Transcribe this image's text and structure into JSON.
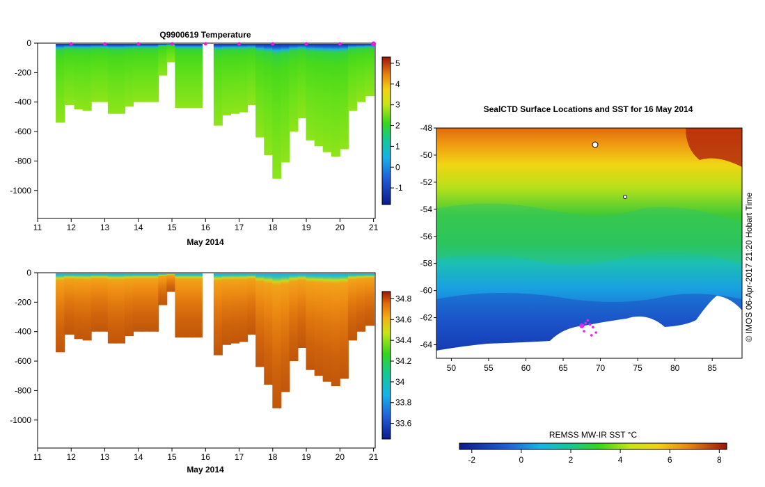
{
  "chart_data": [
    {
      "id": "temp",
      "type": "heatmap",
      "title": "Q9900619  Temperature",
      "xlabel": "May 2014",
      "x_ticks": [
        "11",
        "12",
        "13",
        "14",
        "15",
        "16",
        "17",
        "18",
        "19",
        "20",
        "21"
      ],
      "xlim": [
        11,
        21.05
      ],
      "y_ticks": [
        "0",
        "-200",
        "-400",
        "-600",
        "-800",
        "-1000"
      ],
      "ylim": [
        -1190,
        0
      ],
      "profile_days": [
        11.55,
        11.8,
        12.1,
        12.35,
        12.6,
        12.85,
        13.1,
        13.35,
        13.6,
        13.85,
        14.1,
        14.35,
        14.6,
        14.85,
        15.1,
        15.35,
        15.6,
        16.25,
        16.5,
        16.75,
        17.0,
        17.25,
        17.5,
        17.75,
        18.0,
        18.25,
        18.5,
        18.75,
        19.0,
        19.25,
        19.5,
        19.75,
        20.0,
        20.25,
        20.5,
        20.75
      ],
      "profile_max_depth": [
        -540,
        -420,
        -450,
        -460,
        -400,
        -400,
        -480,
        -480,
        -430,
        -400,
        -400,
        -400,
        -220,
        -130,
        -440,
        -440,
        -440,
        -560,
        -490,
        -480,
        -470,
        -420,
        -640,
        -760,
        -920,
        -810,
        -600,
        -510,
        -660,
        -700,
        -740,
        -770,
        -720,
        -460,
        -400,
        -360
      ],
      "surface_markers": [
        12.0,
        13.0,
        14.0,
        15.0,
        16.0,
        17.0,
        18.0,
        19.0,
        20.0,
        21.0
      ],
      "colorbar": {
        "ticks": [
          "5",
          "4",
          "3",
          "2",
          "1",
          "0",
          "-1"
        ],
        "range": [
          -1.8,
          5.3
        ]
      }
    },
    {
      "id": "salt",
      "type": "heatmap",
      "xlabel": "May 2014",
      "x_ticks": [
        "11",
        "12",
        "13",
        "14",
        "15",
        "16",
        "17",
        "18",
        "19",
        "20",
        "21"
      ],
      "xlim": [
        11,
        21.05
      ],
      "y_ticks": [
        "0",
        "-200",
        "-400",
        "-600",
        "-800",
        "-1000"
      ],
      "ylim": [
        -1190,
        0
      ],
      "colorbar": {
        "ticks": [
          "34.8",
          "34.6",
          "34.4",
          "34.2",
          "34",
          "33.8",
          "33.6"
        ],
        "range": [
          33.45,
          34.87
        ]
      }
    },
    {
      "id": "map",
      "type": "heatmap",
      "title": "SealCTD Surface Locations and SST for 16 May 2014",
      "lon_ticks": [
        "50",
        "55",
        "60",
        "65",
        "70",
        "75",
        "80",
        "85"
      ],
      "lon_range": [
        48,
        89
      ],
      "lat_ticks": [
        "-48",
        "-50",
        "-52",
        "-54",
        "-56",
        "-58",
        "-60",
        "-62",
        "-64"
      ],
      "lat_range": [
        -65,
        -48
      ],
      "side_text": "© IMOS 06-Apr-2017 21:20 Hobart Time",
      "sst_colorbar": {
        "label": "REMSS MW-IR SST °C",
        "ticks": [
          "-2",
          "0",
          "2",
          "4",
          "6",
          "8"
        ],
        "range": [
          -2.5,
          8.3
        ]
      },
      "seal_positions_lonlat": [
        [
          67.5,
          -62.6
        ],
        [
          68.0,
          -62.4
        ],
        [
          68.6,
          -62.5
        ],
        [
          69.0,
          -62.7
        ],
        [
          68.3,
          -62.2
        ],
        [
          67.8,
          -63.0
        ],
        [
          69.4,
          -63.1
        ],
        [
          68.8,
          -63.3
        ]
      ]
    }
  ]
}
